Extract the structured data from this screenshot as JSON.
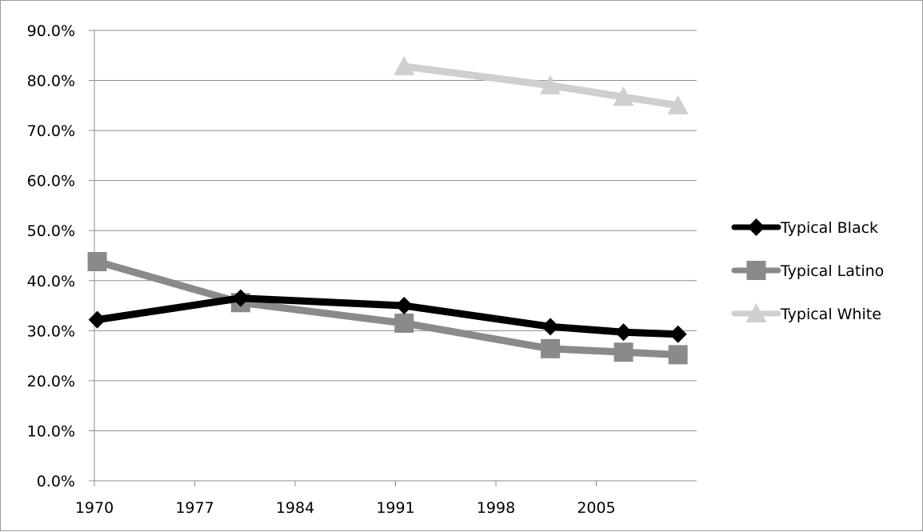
{
  "chart_data": {
    "type": "line",
    "title": "",
    "xlabel": "",
    "ylabel": "",
    "xlim": [
      1970,
      2012
    ],
    "ylim": [
      0,
      90
    ],
    "x_ticks": [
      1970,
      1977,
      1984,
      1991,
      1998,
      2005
    ],
    "x_tick_labels": [
      "1970",
      "1977",
      "1984",
      "1991",
      "1998",
      "2005"
    ],
    "y_ticks": [
      0,
      10,
      20,
      30,
      40,
      50,
      60,
      70,
      80,
      90
    ],
    "y_tick_labels": [
      "0.0%",
      "10.0%",
      "20.0%",
      "30.0%",
      "40.0%",
      "50.0%",
      "60.0%",
      "70.0%",
      "80.0%",
      "90.0%"
    ],
    "grid": "horizontal",
    "legend_position": "right",
    "series": [
      {
        "name": "Typical Black",
        "color": "#000000",
        "marker": "diamond",
        "points": [
          [
            1970.2,
            32.2
          ],
          [
            1980.2,
            36.5
          ],
          [
            1991.6,
            35.0
          ],
          [
            2001.8,
            30.8
          ],
          [
            2006.9,
            29.7
          ],
          [
            2010.7,
            29.3
          ]
        ]
      },
      {
        "name": "Typical Latino",
        "color": "#8a8a8a",
        "marker": "square",
        "points": [
          [
            1970.2,
            43.8
          ],
          [
            1980.2,
            35.6
          ],
          [
            1991.6,
            31.5
          ],
          [
            2001.8,
            26.4
          ],
          [
            2006.9,
            25.7
          ],
          [
            2010.7,
            25.2
          ]
        ]
      },
      {
        "name": "Typical White",
        "color": "#cfcfcf",
        "marker": "triangle",
        "points": [
          [
            1991.6,
            82.8
          ],
          [
            2001.8,
            79.0
          ],
          [
            2006.9,
            76.7
          ],
          [
            2010.7,
            75.0
          ]
        ]
      }
    ]
  }
}
